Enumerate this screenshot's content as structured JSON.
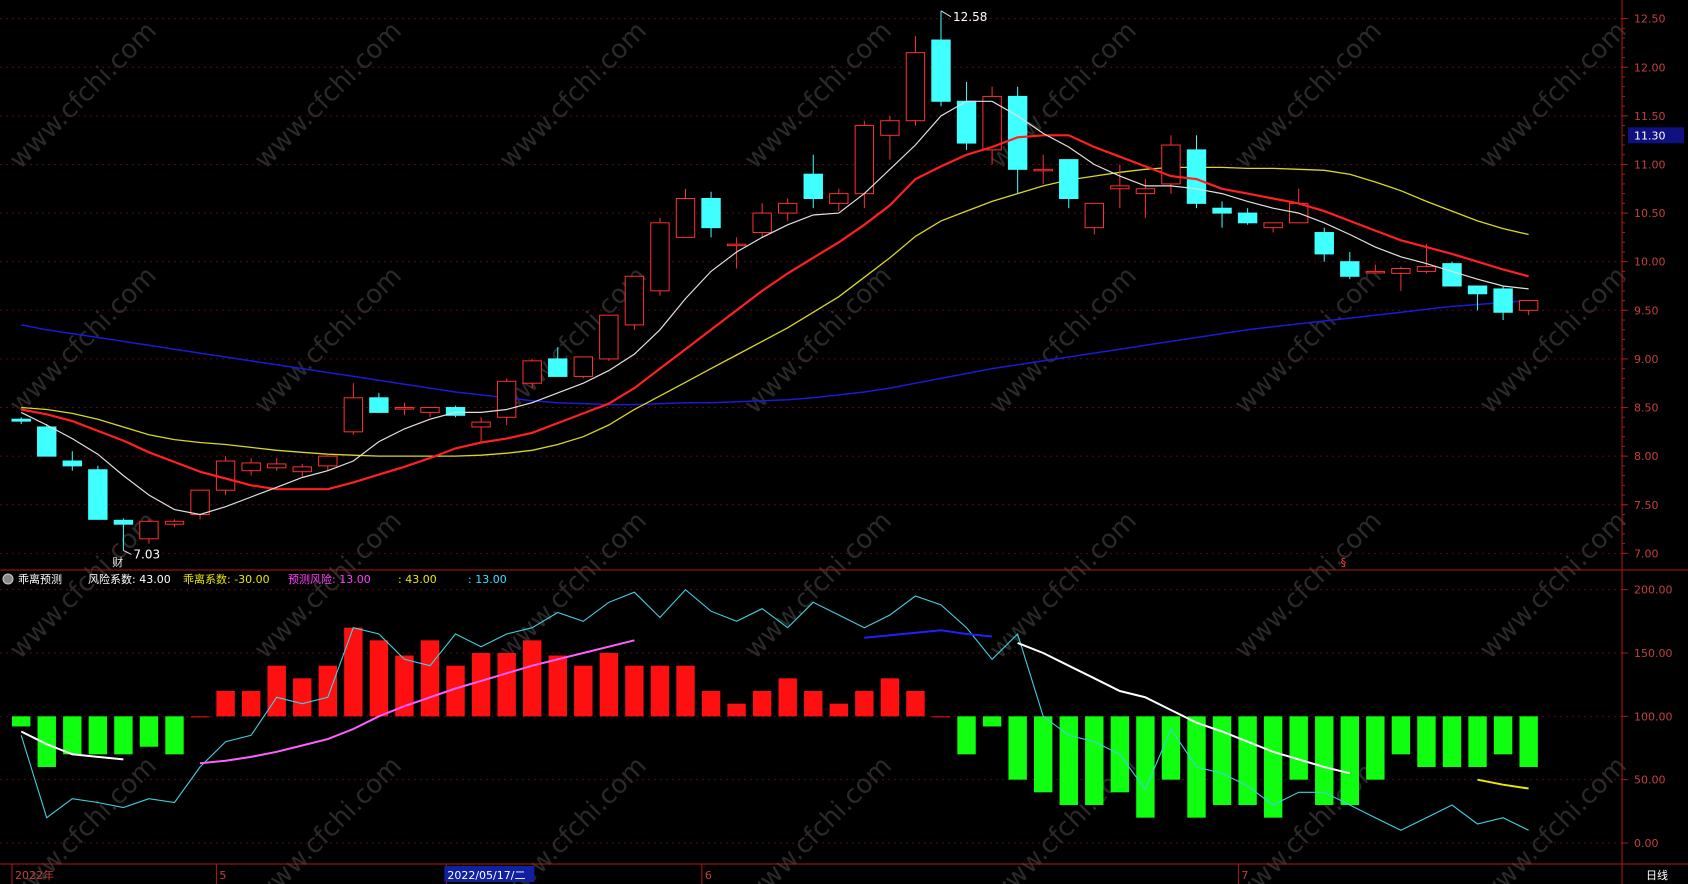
{
  "chart_data": [
    {
      "type": "candlestick",
      "name": "price",
      "y_ticks": [
        7.0,
        7.5,
        8.0,
        8.5,
        9.0,
        9.5,
        10.0,
        10.5,
        11.0,
        11.5,
        12.0,
        12.5
      ],
      "y_tick_labels": [
        "7.00",
        "7.50",
        "8.00",
        "8.50",
        "9.00",
        "9.50",
        "10.00",
        "10.50",
        "11.00",
        "11.50",
        "12.00",
        "12.50"
      ],
      "ylim": [
        6.87,
        12.63
      ],
      "candles": [
        [
          8.38,
          8.4,
          8.33,
          8.36
        ],
        [
          8.3,
          8.33,
          8.0,
          8.0
        ],
        [
          7.95,
          8.05,
          7.85,
          7.9
        ],
        [
          7.86,
          7.9,
          7.35,
          7.35
        ],
        [
          7.34,
          7.36,
          7.03,
          7.3
        ],
        [
          7.15,
          7.35,
          7.1,
          7.33
        ],
        [
          7.3,
          7.35,
          7.27,
          7.33
        ],
        [
          7.4,
          7.65,
          7.35,
          7.65
        ],
        [
          7.65,
          8.0,
          7.6,
          7.95
        ],
        [
          7.85,
          7.98,
          7.8,
          7.93
        ],
        [
          7.88,
          7.98,
          7.85,
          7.92
        ],
        [
          7.84,
          7.92,
          7.79,
          7.89
        ],
        [
          7.9,
          8.02,
          7.85,
          8.0
        ],
        [
          8.25,
          8.75,
          8.22,
          8.6
        ],
        [
          8.6,
          8.65,
          8.45,
          8.45
        ],
        [
          8.5,
          8.55,
          8.42,
          8.5
        ],
        [
          8.45,
          8.5,
          8.4,
          8.5
        ],
        [
          8.5,
          8.52,
          8.4,
          8.42
        ],
        [
          8.3,
          8.4,
          8.15,
          8.35
        ],
        [
          8.4,
          8.8,
          8.32,
          8.77
        ],
        [
          8.75,
          9.0,
          8.7,
          8.98
        ],
        [
          9.0,
          9.12,
          8.85,
          8.82
        ],
        [
          8.82,
          9.02,
          8.8,
          9.02
        ],
        [
          9.0,
          9.45,
          8.98,
          9.45
        ],
        [
          9.35,
          9.85,
          9.3,
          9.85
        ],
        [
          9.7,
          10.45,
          9.65,
          10.4
        ],
        [
          10.25,
          10.75,
          10.25,
          10.65
        ],
        [
          10.65,
          10.72,
          10.25,
          10.35
        ],
        [
          10.18,
          10.25,
          9.93,
          10.18
        ],
        [
          10.3,
          10.6,
          10.25,
          10.5
        ],
        [
          10.5,
          10.65,
          10.42,
          10.6
        ],
        [
          10.9,
          11.1,
          10.55,
          10.65
        ],
        [
          10.6,
          10.75,
          10.52,
          10.7
        ],
        [
          10.7,
          11.45,
          10.55,
          11.4
        ],
        [
          11.3,
          11.5,
          11.05,
          11.45
        ],
        [
          11.45,
          12.32,
          11.4,
          12.15
        ],
        [
          12.28,
          12.58,
          11.6,
          11.65
        ],
        [
          11.65,
          11.85,
          11.15,
          11.22
        ],
        [
          11.15,
          11.8,
          11.0,
          11.7
        ],
        [
          11.7,
          11.8,
          10.7,
          10.95
        ],
        [
          10.95,
          11.1,
          10.8,
          10.95
        ],
        [
          11.05,
          11.05,
          10.55,
          10.65
        ],
        [
          10.35,
          10.6,
          10.28,
          10.6
        ],
        [
          10.75,
          11.0,
          10.55,
          10.78
        ],
        [
          10.7,
          10.85,
          10.45,
          10.75
        ],
        [
          10.8,
          11.3,
          10.7,
          11.2
        ],
        [
          11.15,
          11.3,
          10.55,
          10.6
        ],
        [
          10.55,
          10.62,
          10.35,
          10.5
        ],
        [
          10.5,
          10.55,
          10.38,
          10.4
        ],
        [
          10.35,
          10.4,
          10.3,
          10.4
        ],
        [
          10.4,
          10.75,
          10.4,
          10.6
        ],
        [
          10.3,
          10.35,
          10.0,
          10.08
        ],
        [
          10.0,
          10.1,
          9.82,
          9.85
        ],
        [
          9.9,
          9.97,
          9.88,
          9.9
        ],
        [
          9.88,
          9.95,
          9.7,
          9.93
        ],
        [
          9.9,
          10.18,
          9.88,
          9.95
        ],
        [
          9.98,
          10.0,
          9.75,
          9.75
        ],
        [
          9.75,
          9.75,
          9.5,
          9.67
        ],
        [
          9.72,
          9.75,
          9.4,
          9.48
        ],
        [
          9.5,
          9.6,
          9.45,
          9.6
        ]
      ],
      "ma_white": [
        8.45,
        8.32,
        8.18,
        8.02,
        7.8,
        7.6,
        7.45,
        7.4,
        7.48,
        7.58,
        7.68,
        7.78,
        7.85,
        7.95,
        8.15,
        8.28,
        8.38,
        8.45,
        8.45,
        8.48,
        8.55,
        8.65,
        8.75,
        8.88,
        9.05,
        9.3,
        9.62,
        9.9,
        10.1,
        10.25,
        10.38,
        10.48,
        10.5,
        10.7,
        10.95,
        11.2,
        11.5,
        11.65,
        11.65,
        11.5,
        11.32,
        11.18,
        11.0,
        10.88,
        10.78,
        10.78,
        10.75,
        10.7,
        10.62,
        10.55,
        10.5,
        10.4,
        10.28,
        10.15,
        10.05,
        9.98,
        9.9,
        9.82,
        9.75,
        9.72
      ],
      "ma_red": [
        8.48,
        8.43,
        8.36,
        8.26,
        8.16,
        8.04,
        7.94,
        7.84,
        7.77,
        7.7,
        7.66,
        7.66,
        7.66,
        7.73,
        7.81,
        7.89,
        7.98,
        8.08,
        8.14,
        8.18,
        8.24,
        8.34,
        8.44,
        8.54,
        8.7,
        8.9,
        9.1,
        9.3,
        9.5,
        9.7,
        9.88,
        10.04,
        10.2,
        10.38,
        10.58,
        10.85,
        10.98,
        11.1,
        11.18,
        11.28,
        11.3,
        11.3,
        11.18,
        11.08,
        10.98,
        10.88,
        10.85,
        10.75,
        10.7,
        10.65,
        10.6,
        10.52,
        10.42,
        10.32,
        10.22,
        10.15,
        10.08,
        10.0,
        9.92,
        9.85
      ],
      "ma_yellow": [
        8.5,
        8.48,
        8.44,
        8.38,
        8.3,
        8.22,
        8.17,
        8.14,
        8.12,
        8.09,
        8.06,
        8.04,
        8.02,
        8.01,
        8.0,
        8.0,
        8.0,
        8.0,
        8.01,
        8.03,
        8.06,
        8.12,
        8.2,
        8.32,
        8.48,
        8.62,
        8.76,
        8.9,
        9.04,
        9.18,
        9.32,
        9.48,
        9.64,
        9.84,
        10.04,
        10.26,
        10.42,
        10.52,
        10.62,
        10.7,
        10.78,
        10.84,
        10.88,
        10.92,
        10.95,
        10.97,
        10.97,
        10.97,
        10.96,
        10.96,
        10.95,
        10.94,
        10.9,
        10.82,
        10.73,
        10.62,
        10.52,
        10.42,
        10.34,
        10.28
      ],
      "ma_blue": [
        9.35,
        9.3,
        9.26,
        9.22,
        9.18,
        9.14,
        9.1,
        9.06,
        9.02,
        8.98,
        8.94,
        8.9,
        8.86,
        8.82,
        8.78,
        8.74,
        8.7,
        8.66,
        8.63,
        8.6,
        8.57,
        8.55,
        8.54,
        8.53,
        8.53,
        8.54,
        8.55,
        8.55,
        8.56,
        8.57,
        8.58,
        8.6,
        8.63,
        8.66,
        8.7,
        8.75,
        8.8,
        8.85,
        8.9,
        8.94,
        8.98,
        9.02,
        9.06,
        9.1,
        9.14,
        9.18,
        9.22,
        9.26,
        9.3,
        9.33,
        9.36,
        9.39,
        9.42,
        9.45,
        9.48,
        9.51,
        9.54,
        9.56,
        9.58,
        9.6
      ],
      "annotations": [
        {
          "label": "12.58",
          "index": 36,
          "value": 12.58
        },
        {
          "label": "7.03",
          "index": 4,
          "value": 7.03
        },
        {
          "label": "财",
          "index": 4
        },
        {
          "label": "§",
          "index": 52
        }
      ],
      "current_price_label": "11.30",
      "current_price_value": 11.3,
      "time_labels": [
        {
          "label": "2022年",
          "index": 0
        },
        {
          "label": "5",
          "index": 8
        },
        {
          "label": "2022/05/17/二",
          "index": 17,
          "highlight": true
        },
        {
          "label": "6",
          "index": 27
        },
        {
          "label": "7",
          "index": 48
        }
      ],
      "period_label": "日线"
    },
    {
      "type": "bar",
      "name": "indicator",
      "title": "乖离预测",
      "legend": [
        {
          "label": "风险系数: 43.00",
          "color": "#ffffff"
        },
        {
          "label": "乖离系数: -30.00",
          "color": "#e8e800"
        },
        {
          "label": "预测风险: 13.00",
          "color": "#ff40ff"
        },
        {
          "label": ": 43.00",
          "color": "#e8e800"
        },
        {
          "label": ": 13.00",
          "color": "#40e0ff"
        }
      ],
      "y_ticks": [
        0,
        50,
        100,
        150,
        200
      ],
      "y_tick_labels": [
        "0.00",
        "50.00",
        "100.00",
        "150.00",
        "200.00"
      ],
      "ylim": [
        -15,
        210
      ],
      "baseline": 100,
      "bars": [
        92,
        60,
        70,
        70,
        70,
        76,
        70,
        100,
        120,
        120,
        140,
        130,
        140,
        170,
        160,
        148,
        160,
        140,
        150,
        150,
        160,
        148,
        140,
        150,
        140,
        140,
        140,
        120,
        110,
        120,
        130,
        120,
        110,
        120,
        130,
        120,
        100,
        70,
        92,
        50,
        40,
        30,
        30,
        40,
        20,
        50,
        20,
        30,
        30,
        20,
        50,
        30,
        30,
        50,
        70,
        60,
        60,
        60,
        70,
        60
      ],
      "cyan_line": [
        85,
        20,
        35,
        32,
        28,
        35,
        32,
        60,
        80,
        85,
        115,
        110,
        115,
        170,
        165,
        145,
        140,
        165,
        155,
        165,
        170,
        182,
        175,
        190,
        198,
        178,
        200,
        183,
        175,
        185,
        170,
        190,
        180,
        170,
        180,
        195,
        188,
        170,
        145,
        165,
        100,
        85,
        80,
        70,
        42,
        90,
        60,
        55,
        45,
        30,
        40,
        40,
        30,
        20,
        10,
        20,
        30,
        15,
        20,
        10
      ],
      "white_line_segments": [
        {
          "start": 0,
          "values": [
            88,
            78,
            70,
            68,
            66
          ]
        },
        {
          "start": 39,
          "values": [
            158,
            150,
            140,
            130,
            120,
            115,
            105,
            95,
            88,
            80,
            72,
            66,
            60,
            55
          ]
        }
      ],
      "magenta_line": {
        "start": 7,
        "values": [
          63,
          65,
          68,
          72,
          77,
          82,
          90,
          100,
          108,
          115,
          122,
          128,
          134,
          140,
          145,
          150,
          155,
          160
        ]
      },
      "blue_line": {
        "start": 33,
        "values": [
          162,
          164,
          166,
          168,
          165,
          163
        ]
      },
      "yellow_line": {
        "start": 57,
        "values": [
          50,
          46,
          43
        ]
      }
    }
  ]
}
